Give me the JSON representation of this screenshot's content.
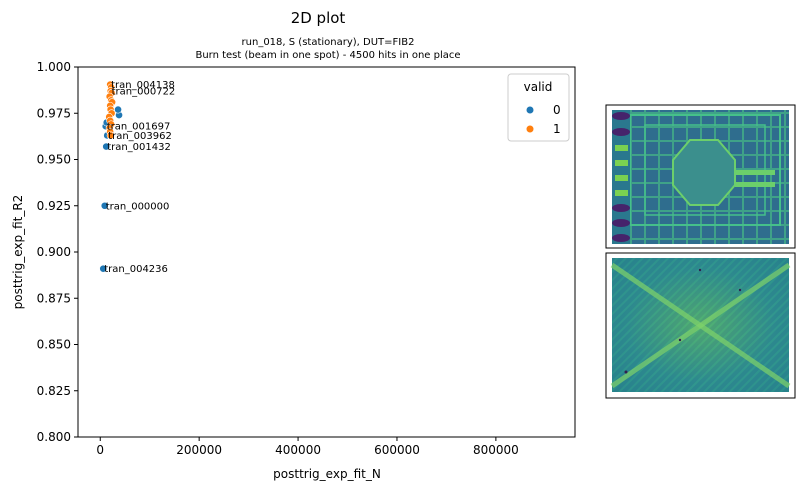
{
  "chart_data": {
    "type": "scatter",
    "title": "2D plot",
    "subtitle_lines": [
      "run_018, S (stationary), DUT=FIB2",
      "Burn test (beam in one spot) - 4500 hits in one place"
    ],
    "xlabel": "posttrig_exp_fit_N",
    "ylabel": "posttrig_exp_fit_R2",
    "xlim": [
      -45000,
      960000
    ],
    "ylim": [
      0.8,
      1.0
    ],
    "x_ticks": [
      0,
      200000,
      400000,
      600000,
      800000
    ],
    "x_tick_labels": [
      "0",
      "200000",
      "400000",
      "600000",
      "800000"
    ],
    "y_ticks": [
      0.8,
      0.825,
      0.85,
      0.875,
      0.9,
      0.925,
      0.95,
      0.975,
      1.0
    ],
    "y_tick_labels": [
      "0.800",
      "0.825",
      "0.850",
      "0.875",
      "0.900",
      "0.925",
      "0.950",
      "0.975",
      "1.000"
    ],
    "grid": false,
    "legend": {
      "title": "valid",
      "placement": "top-right",
      "entries": [
        {
          "label": "0",
          "color": "#1f77b4"
        },
        {
          "label": "1",
          "color": "#ff7f0e"
        }
      ]
    },
    "series": [
      {
        "name": "0",
        "color": "#1f77b4",
        "points": [
          {
            "x": 9000,
            "y": 0.925,
            "label": "tran_000000"
          },
          {
            "x": 6000,
            "y": 0.891,
            "label": "tran_004236"
          },
          {
            "x": 12000,
            "y": 0.957,
            "label": "tran_001432"
          },
          {
            "x": 14000,
            "y": 0.963,
            "label": "tran_003962"
          },
          {
            "x": 11000,
            "y": 0.968,
            "label": "tran_001697"
          },
          {
            "x": 13000,
            "y": 0.97
          },
          {
            "x": 38000,
            "y": 0.974
          },
          {
            "x": 36000,
            "y": 0.977
          }
        ]
      },
      {
        "name": "1",
        "color": "#ff7f0e",
        "points": [
          {
            "x": 20000,
            "y": 0.9905,
            "label": "tran_004138"
          },
          {
            "x": 22000,
            "y": 0.989
          },
          {
            "x": 21000,
            "y": 0.987,
            "label": "tran_000722"
          },
          {
            "x": 23000,
            "y": 0.986
          },
          {
            "x": 19000,
            "y": 0.984
          },
          {
            "x": 22000,
            "y": 0.982
          },
          {
            "x": 24000,
            "y": 0.981
          },
          {
            "x": 20000,
            "y": 0.979
          },
          {
            "x": 21000,
            "y": 0.977
          },
          {
            "x": 23000,
            "y": 0.975
          },
          {
            "x": 18000,
            "y": 0.973
          },
          {
            "x": 20000,
            "y": 0.971
          },
          {
            "x": 22000,
            "y": 0.969
          },
          {
            "x": 19000,
            "y": 0.967
          },
          {
            "x": 20000,
            "y": 0.965
          },
          {
            "x": 21000,
            "y": 0.963
          }
        ]
      }
    ],
    "insets": [
      {
        "type": "image",
        "colormap": "viridis"
      },
      {
        "type": "image",
        "colormap": "viridis"
      }
    ]
  }
}
